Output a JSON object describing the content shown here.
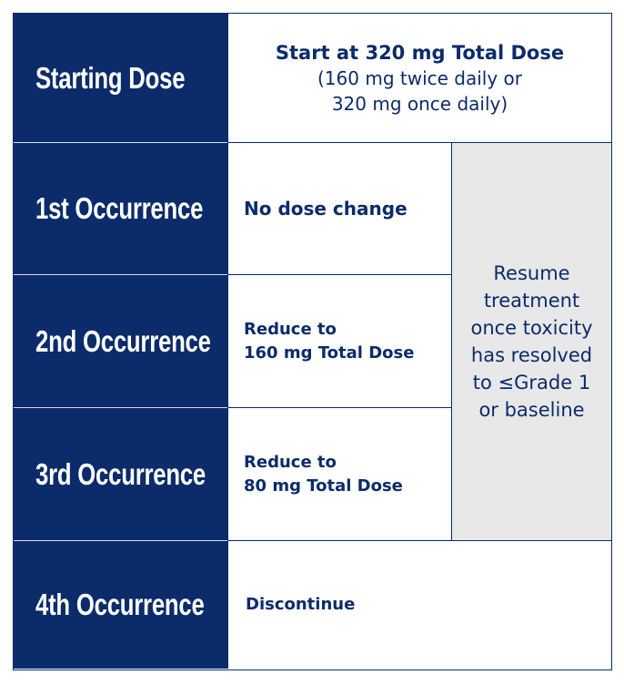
{
  "rows": {
    "starting_dose": {
      "label": "Starting Dose",
      "line1": "Start at 320 mg Total Dose",
      "line2": "(160 mg twice daily or",
      "line3": "320 mg once daily)"
    },
    "first": {
      "label": "1st Occurrence",
      "action": "No dose change"
    },
    "second": {
      "label": "2nd Occurrence",
      "action_line1": "Reduce to",
      "action_line2": "160 mg Total Dose"
    },
    "third": {
      "label": "3rd Occurrence",
      "action_line1": "Reduce to",
      "action_line2": "80 mg Total Dose"
    },
    "fourth": {
      "label": "4th Occurrence",
      "action": "Discontinue"
    }
  },
  "resume_note": "Resume treatment once toxicity has resolved to ≤Grade 1 or baseline",
  "colors": {
    "navy": "#0b2b6b",
    "gray_cell": "#e8e8e8",
    "white": "#ffffff"
  }
}
